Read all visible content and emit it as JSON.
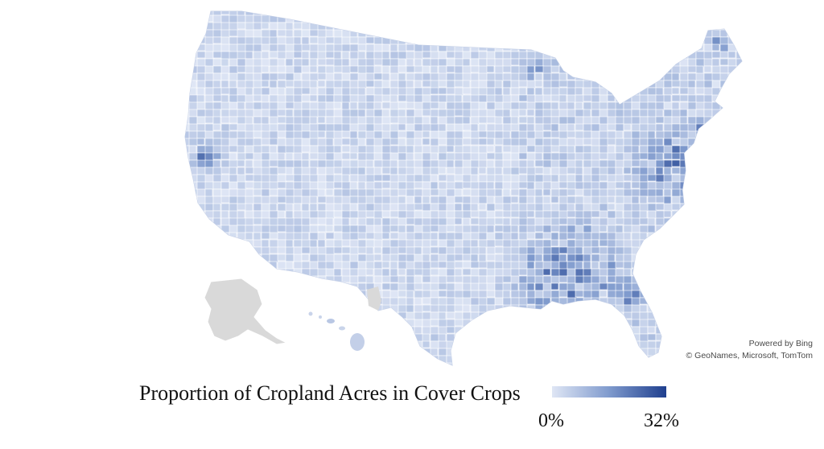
{
  "map": {
    "title": "Proportion of Cropland Acres in Cover Crops",
    "legend": {
      "min_label": "0%",
      "max_label": "32%",
      "min_value": 0,
      "max_value": 32
    },
    "attribution": {
      "line1": "Powered by Bing",
      "line2": "© GeoNames, Microsoft, TomTom"
    },
    "colors": {
      "low": "#dfe6f5",
      "mid": "#7f9acd",
      "high": "#1f3f8e",
      "no_data": "#d9d9d9",
      "border": "#ffffff"
    },
    "regions": [
      "Contiguous United States",
      "Alaska",
      "Hawaii"
    ]
  }
}
